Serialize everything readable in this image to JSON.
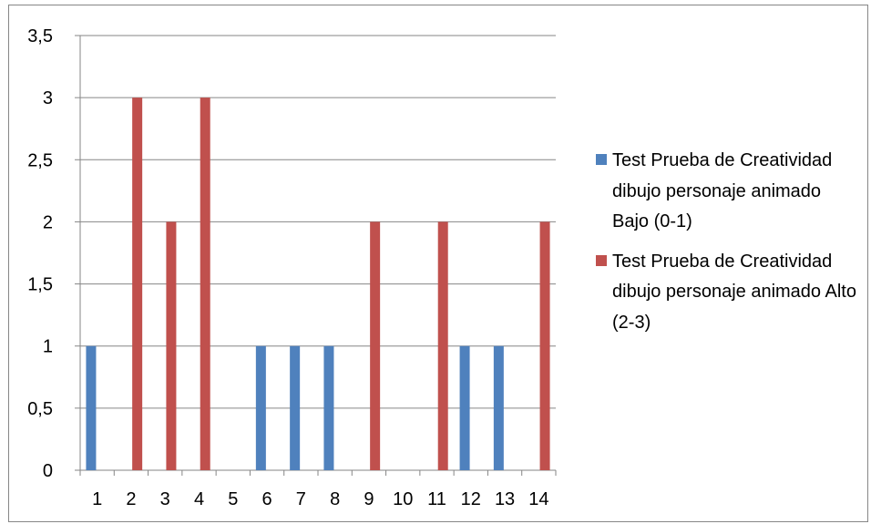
{
  "chart_data": {
    "type": "bar",
    "categories": [
      "1",
      "2",
      "3",
      "4",
      "5",
      "6",
      "7",
      "8",
      "9",
      "10",
      "11",
      "12",
      "13",
      "14"
    ],
    "series": [
      {
        "name": "Test Prueba de Creatividad dibujo personaje animado  Bajo (0-1)",
        "color": "#4F81BD",
        "values": [
          1,
          0,
          0,
          0,
          0,
          1,
          1,
          1,
          0,
          0,
          0,
          1,
          1,
          0
        ]
      },
      {
        "name": "Test Prueba de Creatividad dibujo personaje animado  Alto (2-3)",
        "color": "#C0504D",
        "values": [
          0,
          3,
          2,
          3,
          0,
          0,
          0,
          0,
          2,
          0,
          2,
          0,
          0,
          2
        ]
      }
    ],
    "y_ticks": [
      "0",
      "0,5",
      "1",
      "1,5",
      "2",
      "2,5",
      "3",
      "3,5"
    ],
    "ylim": [
      0,
      3.5
    ],
    "grid": true,
    "legend_position": "right"
  }
}
